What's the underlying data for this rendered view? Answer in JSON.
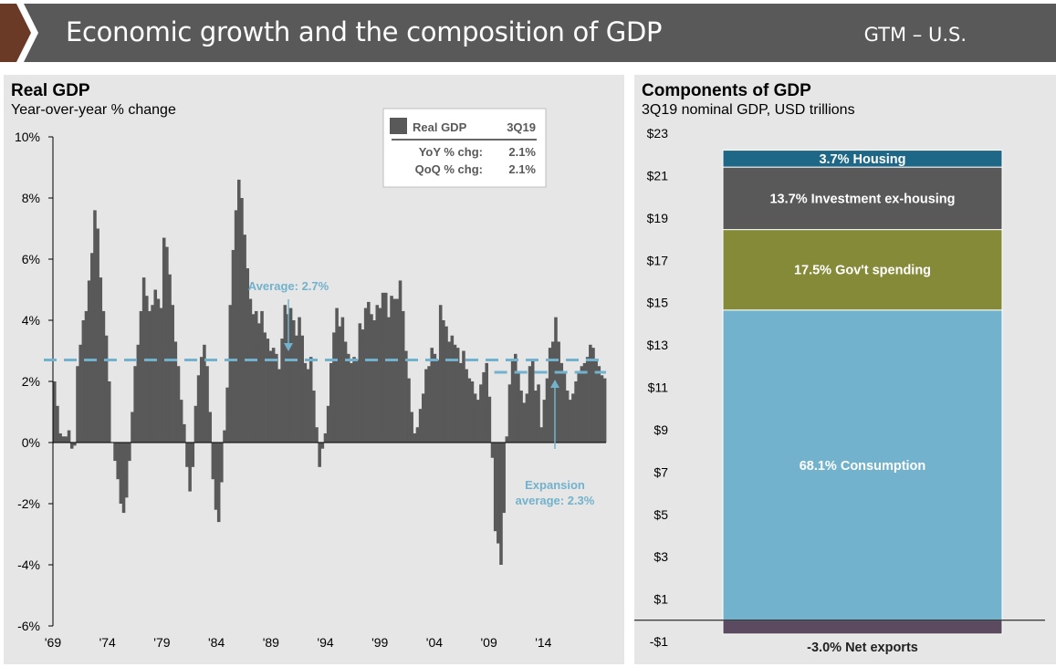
{
  "header": {
    "title": "Economic growth and the composition of GDP",
    "tag": "GTM – U.S.",
    "colors": {
      "banner": "#595959",
      "chevron": "#6b3a26"
    }
  },
  "left": {
    "title": "Real GDP",
    "subtitle": "Year-over-year % change",
    "legend": {
      "series_label": "Real GDP",
      "period": "3Q19",
      "rows": [
        {
          "label": "YoY % chg:",
          "value": "2.1%"
        },
        {
          "label": "QoQ % chg:",
          "value": "2.1%"
        }
      ]
    },
    "average_label": "Average: 2.7%",
    "expansion_label_1": "Expansion",
    "expansion_label_2": "average: 2.3%"
  },
  "right": {
    "title": "Components of GDP",
    "subtitle": "3Q19 nominal GDP, USD trillions"
  },
  "chart_data": [
    {
      "type": "bar",
      "title": "Real GDP",
      "subtitle": "Year-over-year % change",
      "ylim": [
        -6,
        10
      ],
      "yticks": [
        -6,
        -4,
        -2,
        0,
        2,
        4,
        6,
        8,
        10
      ],
      "ytick_labels": [
        "-6%",
        "-4%",
        "-2%",
        "0%",
        "2%",
        "4%",
        "6%",
        "8%",
        "10%"
      ],
      "xtick_labels": [
        "'69",
        "'74",
        "'79",
        "'84",
        "'89",
        "'94",
        "'99",
        "'04",
        "'09",
        "'14"
      ],
      "xtick_years": [
        1969,
        1974,
        1979,
        1984,
        1989,
        1994,
        1999,
        2004,
        2009,
        2014
      ],
      "x_start_year": 1969,
      "x_end_year": 2019.75,
      "bar_color": "#595959",
      "average": {
        "label": "Average: 2.7%",
        "value": 2.7,
        "from_year": 1969
      },
      "expansion_average": {
        "label": "Expansion average: 2.3%",
        "value": 2.3,
        "from_year": 2009.5
      },
      "series": [
        {
          "name": "Real GDP",
          "frequency": "quarterly",
          "start": "1Q69",
          "values": [
            2.0,
            1.2,
            0.3,
            0.2,
            0.2,
            0.4,
            -0.2,
            -0.1,
            2.5,
            3.2,
            4.0,
            4.3,
            5.3,
            6.2,
            7.6,
            7.0,
            5.4,
            4.3,
            3.5,
            2.0,
            0.0,
            -0.6,
            -1.2,
            -2.0,
            -2.3,
            -1.8,
            -0.6,
            1.0,
            2.5,
            3.2,
            4.3,
            5.4,
            4.8,
            4.3,
            4.5,
            5.0,
            4.7,
            4.4,
            6.7,
            6.4,
            5.5,
            4.5,
            3.3,
            2.5,
            1.4,
            0.6,
            -0.8,
            -1.6,
            -0.8,
            1.2,
            2.2,
            2.8,
            3.2,
            2.5,
            1.0,
            -1.2,
            -2.2,
            -2.6,
            -1.3,
            0.4,
            1.8,
            4.5,
            6.3,
            7.6,
            8.6,
            8.0,
            6.8,
            5.7,
            4.7,
            4.2,
            4.3,
            3.9,
            4.3,
            3.6,
            3.4,
            3.0,
            3.1,
            2.9,
            2.4,
            3.4,
            4.5,
            4.2,
            4.4,
            4.0,
            3.5,
            4.1,
            3.5,
            2.6,
            2.4,
            2.8,
            1.7,
            0.5,
            -0.8,
            -0.2,
            0.3,
            1.2,
            2.6,
            3.6,
            4.4,
            3.8,
            4.1,
            3.3,
            2.9,
            2.6,
            2.8,
            2.7,
            3.9,
            3.7,
            4.4,
            4.6,
            4.2,
            4.0,
            4.5,
            4.4,
            4.9,
            4.9,
            4.1,
            4.8,
            4.7,
            4.7,
            5.3,
            4.3,
            3.0,
            2.1,
            1.0,
            0.3,
            0.5,
            1.1,
            1.6,
            2.4,
            2.5,
            3.1,
            2.9,
            2.7,
            4.5,
            4.0,
            3.8,
            3.3,
            3.5,
            3.2,
            3.1,
            2.6,
            3.0,
            2.4,
            2.1,
            2.0,
            1.6,
            1.4,
            1.9,
            2.3,
            2.6,
            1.5,
            -0.5,
            -2.9,
            -3.3,
            -4.0,
            -2.3,
            0.2,
            1.9,
            2.7,
            2.9,
            2.3,
            1.7,
            1.3,
            1.6,
            2.5,
            2.7,
            1.7,
            1.9,
            0.5,
            1.4,
            2.1,
            3.1,
            3.3,
            4.1,
            3.3,
            2.6,
            2.3,
            1.7,
            1.4,
            1.6,
            2.0,
            2.3,
            2.5,
            2.6,
            2.8,
            3.2,
            3.1,
            2.7,
            2.5,
            2.2,
            2.1
          ]
        }
      ]
    },
    {
      "type": "bar",
      "stacked": true,
      "title": "Components of GDP",
      "subtitle": "3Q19 nominal GDP, USD trillions",
      "unit": "USD trillions",
      "ylim": [
        -1,
        23
      ],
      "yticks": [
        -1,
        1,
        3,
        5,
        7,
        9,
        11,
        13,
        15,
        17,
        19,
        21,
        23
      ],
      "ytick_labels": [
        "-$1",
        "$1",
        "$3",
        "$5",
        "$7",
        "$9",
        "$11",
        "$13",
        "$15",
        "$17",
        "$19",
        "$21",
        "$23"
      ],
      "segments": [
        {
          "label": "68.1% Consumption",
          "share_pct": 68.1,
          "from": 0.0,
          "to": 14.65,
          "color": "#72b2cc",
          "text_color": "#ffffff"
        },
        {
          "label": "17.5% Gov't spending",
          "share_pct": 17.5,
          "from": 14.65,
          "to": 18.45,
          "color": "#858a38",
          "text_color": "#ffffff"
        },
        {
          "label": "13.7% Investment ex-housing",
          "share_pct": 13.7,
          "from": 18.45,
          "to": 21.4,
          "color": "#595959",
          "text_color": "#ffffff"
        },
        {
          "label": "3.7% Housing",
          "share_pct": 3.7,
          "from": 21.4,
          "to": 22.2,
          "color": "#1f6787",
          "text_color": "#ffffff"
        },
        {
          "label": "-3.0% Net exports",
          "share_pct": -3.0,
          "from": -0.65,
          "to": 0.0,
          "color": "#5b4a60",
          "text_color": "#222222"
        }
      ]
    }
  ]
}
